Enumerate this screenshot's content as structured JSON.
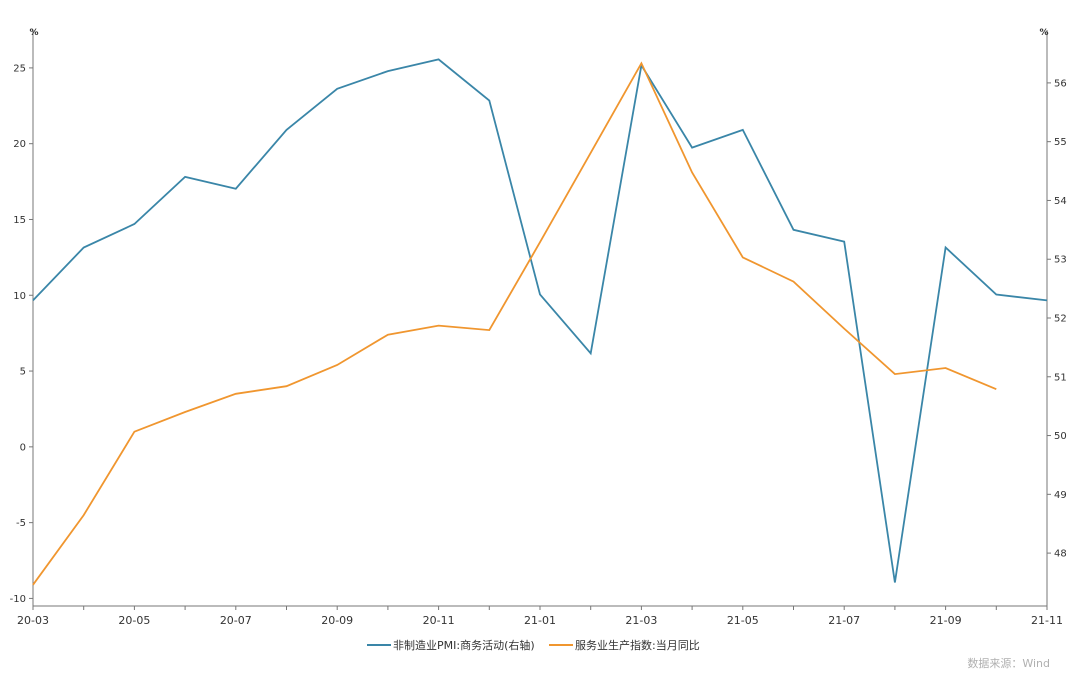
{
  "chart_data": {
    "type": "line",
    "x": [
      "20-03",
      "20-04",
      "20-05",
      "20-06",
      "20-07",
      "20-08",
      "20-09",
      "20-10",
      "20-11",
      "20-12",
      "21-01",
      "21-02",
      "21-03",
      "21-04",
      "21-05",
      "21-06",
      "21-07",
      "21-08",
      "21-09",
      "21-10",
      "21-11"
    ],
    "x_tick_labels": [
      "20-03",
      "20-05",
      "20-07",
      "20-09",
      "20-11",
      "21-01",
      "21-03",
      "21-05",
      "21-07",
      "21-09",
      "21-11"
    ],
    "left_axis": {
      "unit": "%",
      "ylim": [
        -10.5,
        27.5
      ],
      "ticks": [
        -10,
        -5,
        0,
        5,
        10,
        15,
        20,
        25
      ]
    },
    "right_axis": {
      "unit": "%",
      "ylim": [
        47.1,
        56.9
      ],
      "ticks": [
        48,
        49,
        50,
        51,
        52,
        53,
        54,
        55,
        56
      ]
    },
    "series": [
      {
        "name": "非制造业PMI:商务活动(右轴)",
        "axis": "right",
        "color": "#3a86a8",
        "values": [
          52.3,
          53.2,
          53.6,
          54.4,
          54.2,
          55.2,
          55.9,
          56.2,
          56.4,
          55.7,
          52.4,
          51.4,
          56.3,
          54.9,
          55.2,
          53.5,
          53.3,
          47.5,
          53.2,
          52.4,
          52.3
        ]
      },
      {
        "name": "服务业生产指数:当月同比",
        "axis": "left",
        "color": "#f0962f",
        "values": [
          -9.1,
          -4.5,
          1.0,
          2.3,
          3.5,
          4.0,
          5.4,
          7.4,
          8.0,
          7.7,
          13.5,
          19.4,
          25.3,
          18.1,
          12.5,
          10.9,
          7.8,
          4.8,
          5.2,
          3.8,
          null
        ]
      }
    ],
    "source": "数据来源：Wind"
  }
}
